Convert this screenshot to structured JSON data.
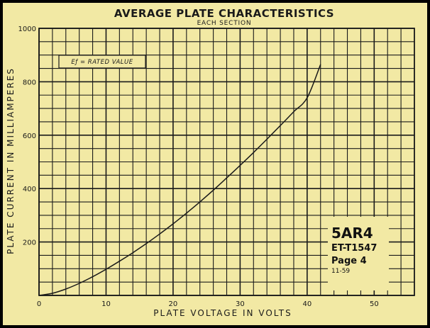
{
  "chart_data": {
    "type": "line",
    "title": "AVERAGE PLATE CHARACTERISTICS",
    "subtitle": "EACH SECTION",
    "xlabel": "PLATE VOLTAGE IN VOLTS",
    "ylabel": "PLATE CURRENT IN MILLIAMPERES",
    "xlim": [
      0,
      56
    ],
    "ylim": [
      0,
      1000
    ],
    "x_ticks": [
      "0",
      "10",
      "20",
      "30",
      "40",
      "50"
    ],
    "y_ticks": [
      "200",
      "400",
      "600",
      "800",
      "1000"
    ],
    "grid": true,
    "legend_label": "Eƒ = RATED VALUE",
    "series": [
      {
        "x": [
          0,
          2,
          4,
          6,
          8,
          10,
          12,
          14,
          16,
          18,
          20,
          22,
          24,
          26,
          28,
          30,
          32,
          34,
          36,
          38,
          40,
          42
        ],
        "y": [
          0,
          8,
          24,
          45,
          70,
          98,
          128,
          160,
          194,
          230,
          268,
          308,
          350,
          394,
          440,
          487,
          535,
          585,
          636,
          688,
          740,
          865
        ]
      }
    ]
  },
  "tube": {
    "type": "5AR4",
    "code": "ET-T1547",
    "page": "Page 4",
    "date": "11-59"
  },
  "colors": {
    "paper": "#f2e9a4",
    "ink": "#1a1a1a",
    "frame": "#000000"
  }
}
